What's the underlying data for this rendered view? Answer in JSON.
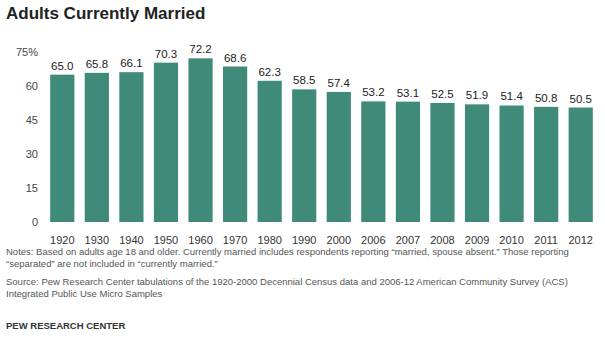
{
  "chart_data": {
    "type": "bar",
    "title": "Adults Currently Married",
    "categories": [
      "1920",
      "1930",
      "1940",
      "1950",
      "1960",
      "1970",
      "1980",
      "1990",
      "2000",
      "2006",
      "2007",
      "2008",
      "2009",
      "2010",
      "2011",
      "2012"
    ],
    "values": [
      65.0,
      65.8,
      66.1,
      70.3,
      72.2,
      68.6,
      62.3,
      58.5,
      57.4,
      53.2,
      53.1,
      52.5,
      51.9,
      51.4,
      50.8,
      50.5
    ],
    "value_labels": [
      "65.0",
      "65.8",
      "66.1",
      "70.3",
      "72.2",
      "68.6",
      "62.3",
      "58.5",
      "57.4",
      "53.2",
      "53.1",
      "52.5",
      "51.9",
      "51.4",
      "50.8",
      "50.5"
    ],
    "color": "#3f8a79",
    "ylim": [
      0,
      75
    ],
    "yticks": [
      0,
      15,
      30,
      45,
      60,
      {
        "value": 75,
        "label": "75%"
      }
    ],
    "grid": false,
    "data_labels": true,
    "notes": "Notes: Based on adults age 18 and older.  Currently married includes respondents reporting “married, spouse absent.” Those reporting “separated” are not included in “currently married.”",
    "source": "Source: Pew Research Center tabulations of the 1920-2000 Decennial Census data and 2006-12 American Community Survey (ACS) Integrated Public Use Micro Samples",
    "credit": "PEW RESEARCH CENTER"
  }
}
